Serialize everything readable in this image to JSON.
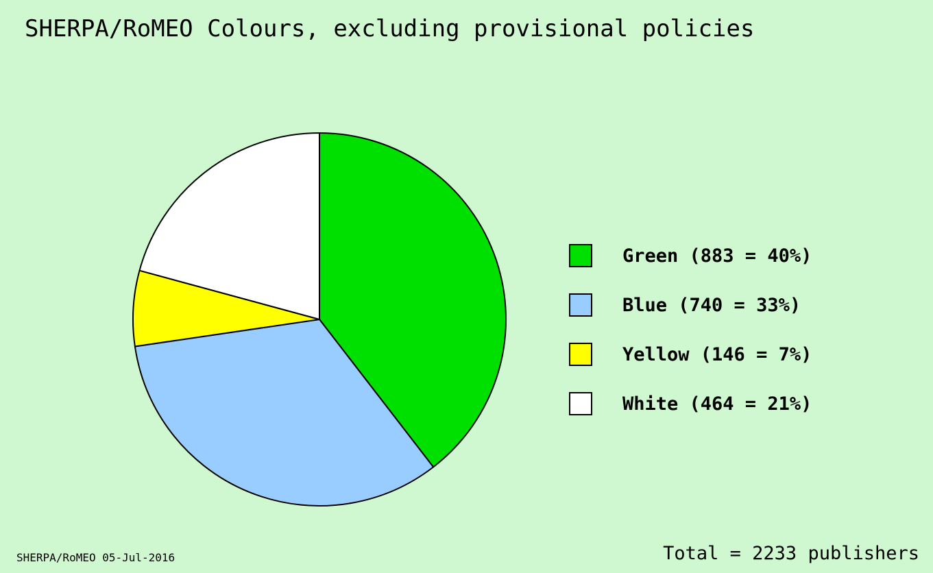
{
  "chart_data": {
    "type": "pie",
    "title": "SHERPA/RoMEO Colours, excluding provisional policies",
    "slices": [
      {
        "name": "Green",
        "value": 883,
        "percent": 40,
        "label": "Green (883 = 40%)",
        "color": "#00e000"
      },
      {
        "name": "Blue",
        "value": 740,
        "percent": 33,
        "label": "Blue (740 = 33%)",
        "color": "#99ccff"
      },
      {
        "name": "Yellow",
        "value": 146,
        "percent": 7,
        "label": "Yellow (146 = 7%)",
        "color": "#ffff00"
      },
      {
        "name": "White",
        "value": 464,
        "percent": 21,
        "label": "White (464 = 21%)",
        "color": "#ffffff"
      }
    ],
    "legend_position": "right",
    "total_label": "Total = 2233 publishers",
    "source_label": "SHERPA/RoMEO 05-Jul-2016"
  },
  "colors": {
    "background": "#d0f8d0",
    "outline": "#000000"
  }
}
